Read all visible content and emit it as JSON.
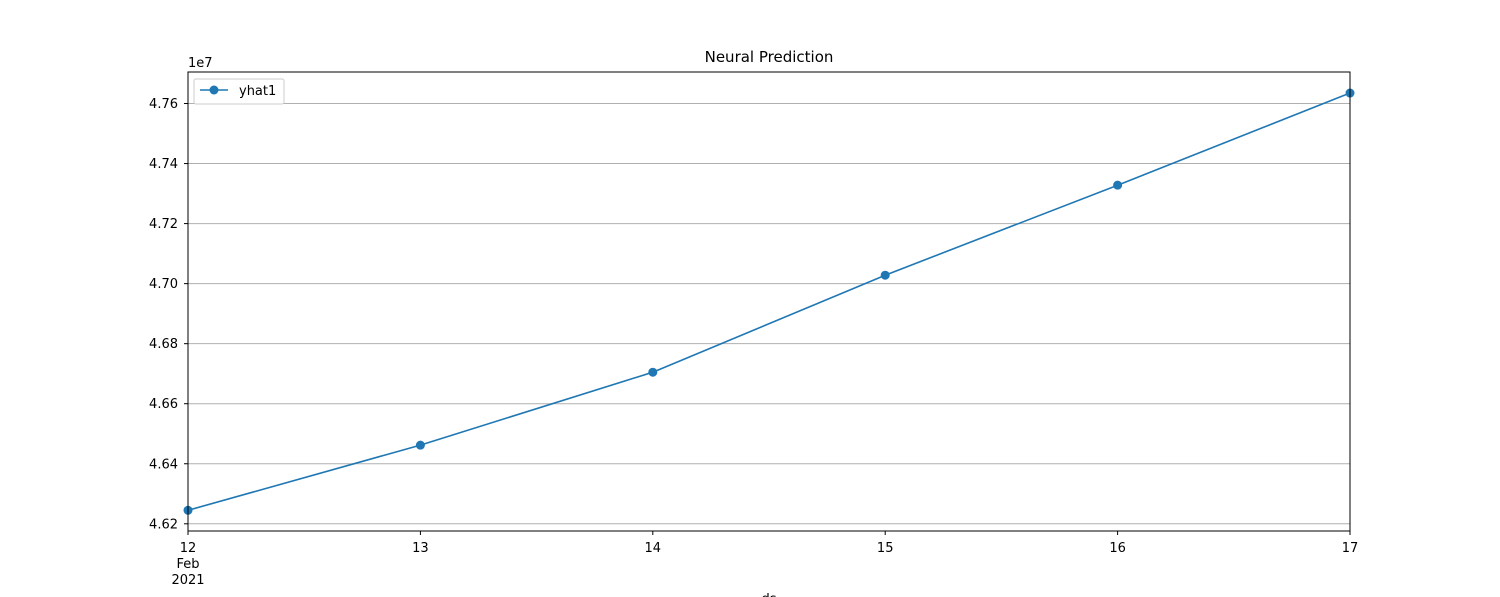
{
  "chart_data": {
    "type": "line",
    "title": "Neural Prediction",
    "xlabel": "ds",
    "ylabel": "",
    "y_offset_label": "1e7",
    "x_tick_labels": [
      {
        "day": "12",
        "month": "Feb",
        "year": "2021"
      },
      {
        "day": "13"
      },
      {
        "day": "14"
      },
      {
        "day": "15"
      },
      {
        "day": "16"
      },
      {
        "day": "17"
      }
    ],
    "y_tick_labels": [
      "4.62",
      "4.64",
      "4.66",
      "4.68",
      "4.70",
      "4.72",
      "4.74",
      "4.76"
    ],
    "y_ticks": [
      4.62,
      4.64,
      4.66,
      4.68,
      4.7,
      4.72,
      4.74,
      4.76
    ],
    "x": [
      "2021-02-12",
      "2021-02-13",
      "2021-02-14",
      "2021-02-15",
      "2021-02-16",
      "2021-02-17"
    ],
    "series": [
      {
        "name": "yhat1",
        "values": [
          4.6245,
          4.6462,
          4.6705,
          4.7028,
          4.7328,
          4.7635
        ]
      }
    ],
    "ylim": [
      4.6176,
      4.7705
    ],
    "grid": "y",
    "legend": "top-left",
    "colors": {
      "series": "#1f77b4",
      "grid": "#b0b0b0"
    }
  }
}
